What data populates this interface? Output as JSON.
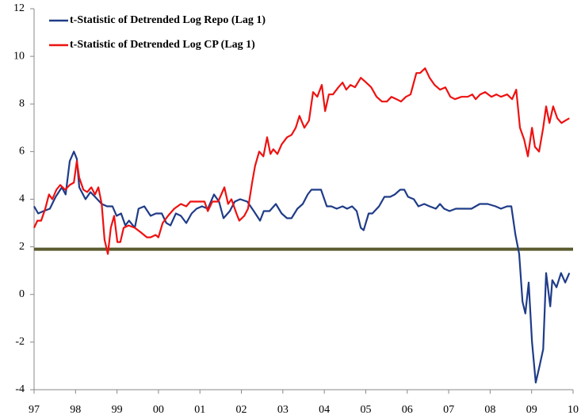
{
  "chart_data": {
    "type": "line",
    "xlim": [
      1997,
      2010
    ],
    "xticks": [
      {
        "value": 1997,
        "label": "97"
      },
      {
        "value": 1998,
        "label": "98"
      },
      {
        "value": 1999,
        "label": "99"
      },
      {
        "value": 2000,
        "label": "00"
      },
      {
        "value": 2001,
        "label": "01"
      },
      {
        "value": 2002,
        "label": "02"
      },
      {
        "value": 2003,
        "label": "03"
      },
      {
        "value": 2004,
        "label": "04"
      },
      {
        "value": 2005,
        "label": "05"
      },
      {
        "value": 2006,
        "label": "06"
      },
      {
        "value": 2007,
        "label": "07"
      },
      {
        "value": 2008,
        "label": "08"
      },
      {
        "value": 2009,
        "label": "09"
      },
      {
        "value": 2010,
        "label": "10"
      }
    ],
    "ylim": [
      -4,
      12
    ],
    "yticks": [
      -4,
      -2,
      0,
      2,
      4,
      6,
      8,
      10,
      12
    ],
    "grid": false,
    "legend": "upper left",
    "reference_line": {
      "value": 1.9,
      "color": "#5b5b30"
    },
    "series": [
      {
        "name": "t-Statistic of Detrended Log Repo (Lag 1)",
        "color": "#1f3c88",
        "x": [
          1997.0,
          1997.1,
          1997.23,
          1997.38,
          1997.52,
          1997.67,
          1997.76,
          1997.86,
          1997.96,
          1998.03,
          1998.09,
          1998.24,
          1998.36,
          1998.47,
          1998.63,
          1998.76,
          1998.89,
          1998.99,
          1999.1,
          1999.2,
          1999.29,
          1999.43,
          1999.52,
          1999.66,
          1999.81,
          1999.94,
          2000.08,
          2000.19,
          2000.29,
          2000.42,
          2000.54,
          2000.67,
          2000.8,
          2000.92,
          2001.05,
          2001.19,
          2001.34,
          2001.46,
          2001.57,
          2001.72,
          2001.84,
          2001.97,
          2002.14,
          2002.3,
          2002.45,
          2002.54,
          2002.68,
          2002.83,
          2002.97,
          2003.1,
          2003.21,
          2003.35,
          2003.48,
          2003.6,
          2003.69,
          2003.83,
          2003.92,
          2004.06,
          2004.17,
          2004.3,
          2004.44,
          2004.55,
          2004.67,
          2004.78,
          2004.88,
          2004.95,
          2005.07,
          2005.16,
          2005.32,
          2005.45,
          2005.59,
          2005.7,
          2005.83,
          2005.93,
          2006.02,
          2006.16,
          2006.27,
          2006.41,
          2006.54,
          2006.69,
          2006.79,
          2006.89,
          2007.02,
          2007.17,
          2007.36,
          2007.55,
          2007.75,
          2007.94,
          2008.13,
          2008.26,
          2008.41,
          2008.51,
          2008.61,
          2008.7,
          2008.78,
          2008.85,
          2008.93,
          2009.01,
          2009.1,
          2009.18,
          2009.28,
          2009.35,
          2009.45,
          2009.5,
          2009.6,
          2009.71,
          2009.81,
          2009.91
        ],
        "values": [
          3.7,
          3.4,
          3.5,
          3.6,
          4.1,
          4.5,
          4.2,
          5.6,
          6.0,
          5.7,
          4.5,
          4.0,
          4.3,
          4.1,
          3.8,
          3.7,
          3.7,
          3.3,
          3.4,
          2.9,
          3.1,
          2.8,
          3.6,
          3.7,
          3.3,
          3.4,
          3.4,
          3.0,
          2.9,
          3.4,
          3.3,
          3.0,
          3.4,
          3.6,
          3.7,
          3.6,
          4.2,
          3.9,
          3.2,
          3.5,
          3.9,
          4.0,
          3.9,
          3.5,
          3.1,
          3.5,
          3.5,
          3.8,
          3.4,
          3.2,
          3.2,
          3.6,
          3.8,
          4.2,
          4.4,
          4.4,
          4.4,
          3.7,
          3.7,
          3.6,
          3.7,
          3.6,
          3.7,
          3.5,
          2.8,
          2.7,
          3.4,
          3.4,
          3.7,
          4.1,
          4.1,
          4.2,
          4.4,
          4.4,
          4.1,
          4.0,
          3.7,
          3.8,
          3.7,
          3.6,
          3.8,
          3.6,
          3.5,
          3.6,
          3.6,
          3.6,
          3.8,
          3.8,
          3.7,
          3.6,
          3.7,
          3.7,
          2.5,
          1.7,
          -0.3,
          -0.8,
          0.5,
          -2.0,
          -3.7,
          -3.1,
          -2.3,
          0.9,
          -0.5,
          0.6,
          0.3,
          0.9,
          0.5,
          0.9
        ]
      },
      {
        "name": "t-Statistic of Detrended Log CP (Lag 1)",
        "color": "#ee1111",
        "x": [
          1997.0,
          1997.08,
          1997.17,
          1997.27,
          1997.36,
          1997.44,
          1997.54,
          1997.63,
          1997.75,
          1997.86,
          1997.96,
          1998.03,
          1998.09,
          1998.19,
          1998.28,
          1998.38,
          1998.47,
          1998.55,
          1998.63,
          1998.7,
          1998.78,
          1998.85,
          1998.93,
          1999.01,
          1999.08,
          1999.16,
          1999.28,
          1999.43,
          1999.58,
          1999.72,
          1999.81,
          1999.93,
          2000.0,
          2000.1,
          2000.23,
          2000.38,
          2000.54,
          2000.67,
          2000.77,
          2000.9,
          2001.0,
          2001.11,
          2001.19,
          2001.3,
          2001.44,
          2001.59,
          2001.68,
          2001.76,
          2001.88,
          2001.95,
          2002.07,
          2002.16,
          2002.26,
          2002.33,
          2002.43,
          2002.53,
          2002.62,
          2002.7,
          2002.77,
          2002.87,
          2002.97,
          2003.1,
          2003.21,
          2003.31,
          2003.4,
          2003.52,
          2003.63,
          2003.73,
          2003.83,
          2003.94,
          2004.02,
          2004.11,
          2004.21,
          2004.34,
          2004.44,
          2004.53,
          2004.63,
          2004.74,
          2004.88,
          2005.01,
          2005.13,
          2005.26,
          2005.39,
          2005.51,
          2005.62,
          2005.74,
          2005.85,
          2005.97,
          2006.08,
          2006.22,
          2006.31,
          2006.43,
          2006.54,
          2006.66,
          2006.79,
          2006.92,
          2007.04,
          2007.15,
          2007.31,
          2007.46,
          2007.57,
          2007.65,
          2007.76,
          2007.88,
          2008.03,
          2008.15,
          2008.26,
          2008.41,
          2008.53,
          2008.63,
          2008.72,
          2008.82,
          2008.91,
          2009.01,
          2009.08,
          2009.18,
          2009.28,
          2009.35,
          2009.43,
          2009.52,
          2009.62,
          2009.72,
          2009.81,
          2009.91
        ],
        "values": [
          2.8,
          3.1,
          3.1,
          3.6,
          4.2,
          4.0,
          4.4,
          4.6,
          4.4,
          4.6,
          4.7,
          5.6,
          4.9,
          4.4,
          4.3,
          4.5,
          4.2,
          4.5,
          3.8,
          2.3,
          1.7,
          2.8,
          3.3,
          2.2,
          2.2,
          2.8,
          2.9,
          2.8,
          2.6,
          2.4,
          2.4,
          2.5,
          2.4,
          3.0,
          3.3,
          3.6,
          3.8,
          3.7,
          3.9,
          3.9,
          3.9,
          3.9,
          3.5,
          3.9,
          3.9,
          4.5,
          3.8,
          4.0,
          3.4,
          3.1,
          3.3,
          3.6,
          4.7,
          5.4,
          6.0,
          5.8,
          6.6,
          5.9,
          6.1,
          5.9,
          6.3,
          6.6,
          6.7,
          7.0,
          7.5,
          7.0,
          7.3,
          8.5,
          8.3,
          8.8,
          7.7,
          8.4,
          8.4,
          8.7,
          8.9,
          8.6,
          8.8,
          8.7,
          9.1,
          8.9,
          8.7,
          8.3,
          8.1,
          8.1,
          8.3,
          8.2,
          8.1,
          8.3,
          8.4,
          9.3,
          9.3,
          9.5,
          9.1,
          8.8,
          8.6,
          8.7,
          8.3,
          8.2,
          8.3,
          8.3,
          8.4,
          8.2,
          8.4,
          8.5,
          8.3,
          8.4,
          8.3,
          8.4,
          8.2,
          8.6,
          7.0,
          6.5,
          5.8,
          7.0,
          6.2,
          6.0,
          7.0,
          7.9,
          7.2,
          7.9,
          7.4,
          7.2,
          7.3,
          7.4
        ]
      }
    ]
  }
}
